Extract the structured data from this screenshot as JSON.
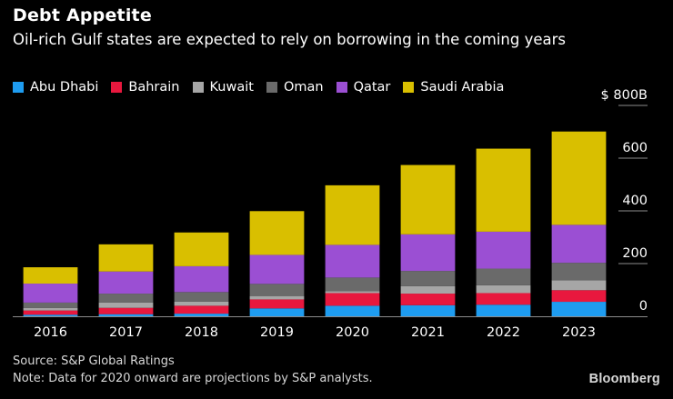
{
  "header": {
    "title": "Debt Appetite",
    "subtitle": "Oil-rich Gulf states are expected to rely on borrowing in the coming years"
  },
  "footer": {
    "source": "Source: S&P Global Ratings",
    "note": "Note: Data for 2020 onward are projections by S&P analysts.",
    "brand": "Bloomberg"
  },
  "chart_data": {
    "type": "bar",
    "stacked": true,
    "categories": [
      "2016",
      "2017",
      "2018",
      "2019",
      "2020",
      "2021",
      "2022",
      "2023"
    ],
    "ylim": [
      0,
      800
    ],
    "yticks": [
      0,
      200,
      400,
      600,
      800
    ],
    "ytick_labels": [
      "0",
      "200",
      "400",
      "600",
      "$ 800B"
    ],
    "legend_position": "top-left",
    "grid": false,
    "series": [
      {
        "name": "Abu Dhabi",
        "color": "#1e9cf0",
        "values": [
          6,
          8,
          10,
          30,
          40,
          42,
          44,
          55
        ]
      },
      {
        "name": "Bahrain",
        "color": "#e8183e",
        "values": [
          16,
          24,
          30,
          34,
          48,
          44,
          44,
          44
        ]
      },
      {
        "name": "Kuwait",
        "color": "#a6a6a6",
        "values": [
          10,
          20,
          16,
          13,
          7,
          28,
          30,
          38
        ]
      },
      {
        "name": "Oman",
        "color": "#6a6a6a",
        "values": [
          20,
          34,
          36,
          46,
          52,
          58,
          63,
          66
        ]
      },
      {
        "name": "Qatar",
        "color": "#9b4fd3",
        "values": [
          72,
          84,
          98,
          110,
          124,
          139,
          140,
          144
        ]
      },
      {
        "name": "Saudi Arabia",
        "color": "#d9bf00",
        "values": [
          62,
          103,
          128,
          166,
          226,
          263,
          315,
          354
        ]
      }
    ]
  }
}
